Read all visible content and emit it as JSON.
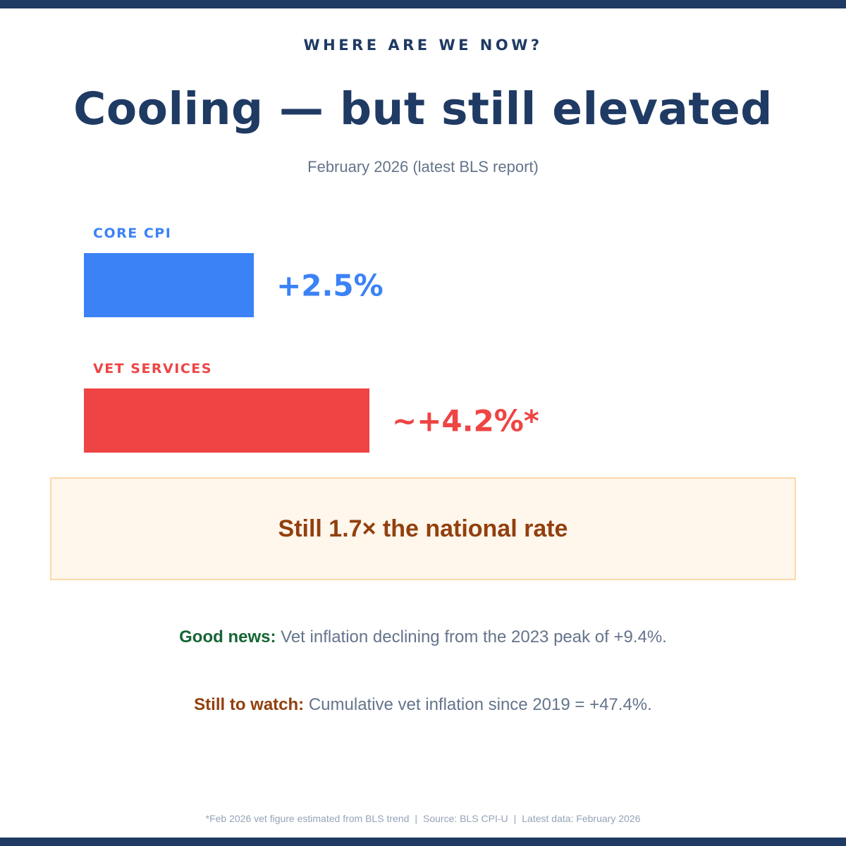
{
  "colors": {
    "navy": "#1f3a63",
    "blue": "#3b82f6",
    "red": "#ef4444",
    "slate": "#64748b",
    "footer": "#94a3b8",
    "green": "#166534",
    "brown": "#92400e",
    "callout_bg": "#fff6ec",
    "callout_border": "#fcd9a8"
  },
  "header": {
    "eyebrow": "WHERE ARE WE NOW?",
    "headline": "Cooling — but still elevated",
    "subtitle": "February 2026 (latest BLS report)"
  },
  "chart_data": {
    "type": "bar",
    "orientation": "horizontal",
    "categories": [
      "CORE CPI",
      "VET SERVICES"
    ],
    "values": [
      2.5,
      4.2
    ],
    "value_labels": [
      "+2.5%",
      "~+4.2%*"
    ],
    "colors": [
      "#3b82f6",
      "#ef4444"
    ],
    "xlim": [
      0,
      4.2
    ],
    "grid": false
  },
  "callout": {
    "text": "Still 1.7× the national rate"
  },
  "notes": {
    "good_label": "Good news:",
    "good_text": " Vet inflation declining from the 2023 peak of +9.4%.",
    "watch_label": "Still to watch:",
    "watch_text": " Cumulative vet inflation since 2019 = +47.4%."
  },
  "footer": {
    "estimate_note": "*Feb 2026 vet figure estimated from BLS trend",
    "source": "Source: BLS CPI-U",
    "latest": "Latest data: February 2026",
    "separator": "|"
  }
}
